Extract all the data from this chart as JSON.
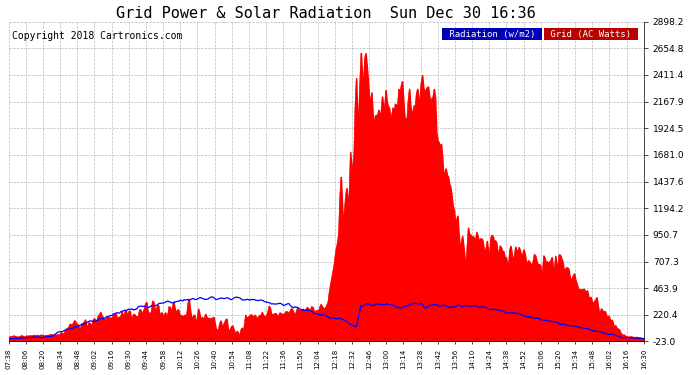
{
  "title": "Grid Power & Solar Radiation  Sun Dec 30 16:36",
  "copyright": "Copyright 2018 Cartronics.com",
  "ylabel_right_ticks": [
    2898.2,
    2654.8,
    2411.4,
    2167.9,
    1924.5,
    1681.0,
    1437.6,
    1194.2,
    950.7,
    707.3,
    463.9,
    220.4,
    -23.0
  ],
  "ymin": -23.0,
  "ymax": 2898.2,
  "x_labels": [
    "07:38",
    "08:06",
    "08:20",
    "08:34",
    "08:48",
    "09:02",
    "09:16",
    "09:30",
    "09:44",
    "09:58",
    "10:12",
    "10:26",
    "10:40",
    "10:54",
    "11:08",
    "11:22",
    "11:36",
    "11:50",
    "12:04",
    "12:18",
    "12:32",
    "12:46",
    "13:00",
    "13:14",
    "13:28",
    "13:42",
    "13:56",
    "14:10",
    "14:24",
    "14:38",
    "14:52",
    "15:06",
    "15:20",
    "15:34",
    "15:48",
    "16:02",
    "16:16",
    "16:30"
  ],
  "radiation_color": "#0000FF",
  "grid_ac_color": "#FF0000",
  "fill_color": "#FF0000",
  "background_color": "#FFFFFF",
  "grid_line_color": "#AAAAAA",
  "title_fontsize": 11,
  "copyright_fontsize": 7
}
